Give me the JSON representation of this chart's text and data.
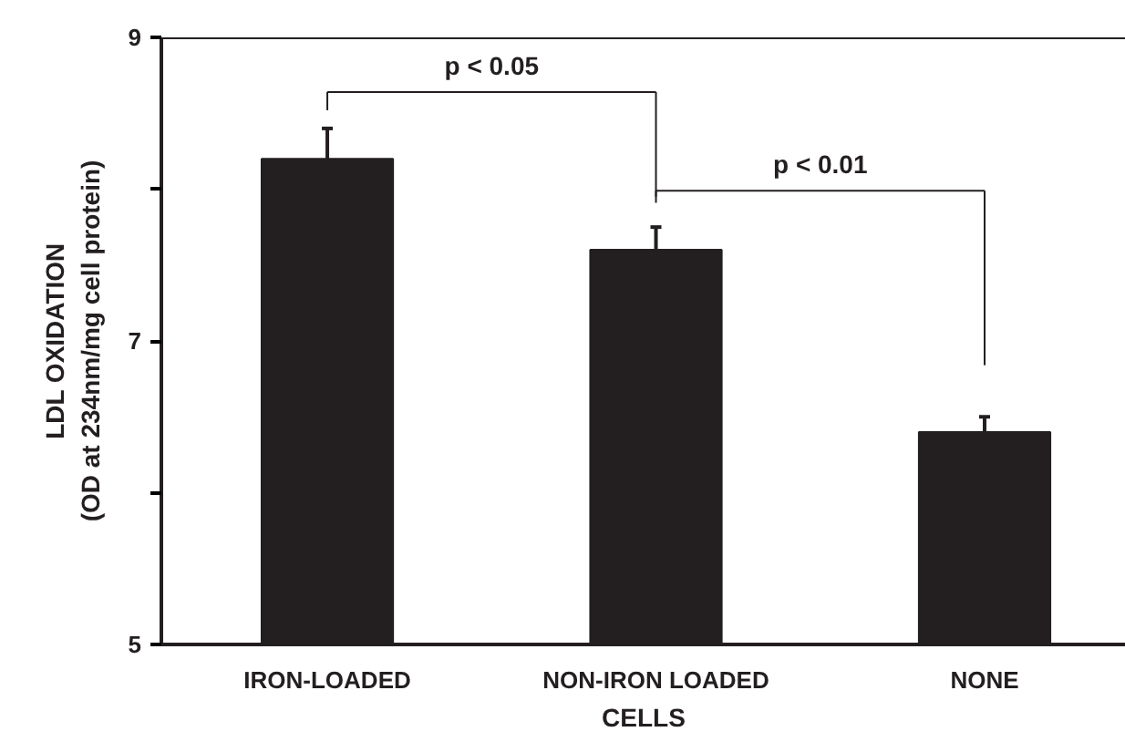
{
  "chart_data": {
    "type": "bar",
    "xlabel": "CELLS",
    "ylabel": "LDL OXIDATION\n(OD at 234nm/mg cell protein)",
    "categories": [
      "IRON-LOADED",
      "NON-IRON LOADED",
      "NONE"
    ],
    "values": [
      8.2,
      7.6,
      6.4
    ],
    "errors": [
      0.2,
      0.15,
      0.1
    ],
    "color": "#231f20",
    "ylim": [
      5,
      9
    ],
    "yticks": [
      5,
      {
        "value": 6,
        "label": null
      },
      7,
      {
        "value": 8,
        "label": null
      },
      9
    ],
    "grid": false,
    "annotations": [
      "p < 0.05",
      "p < 0.01"
    ]
  }
}
